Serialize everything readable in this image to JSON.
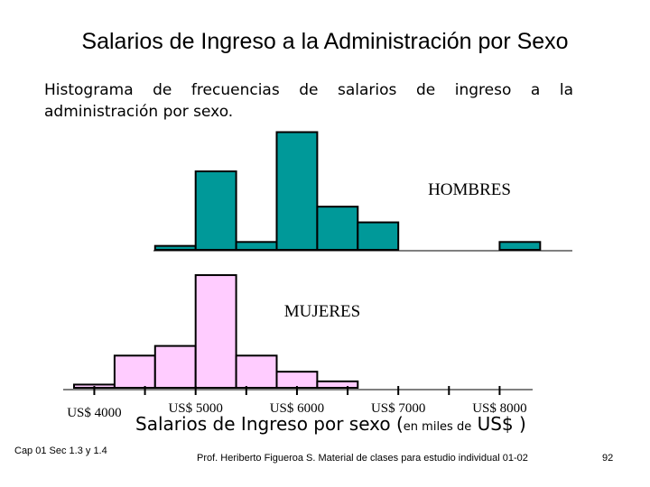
{
  "slide": {
    "title": "Salarios de Ingreso a la Administración por Sexo",
    "intro": "Histograma de frecuencias de salarios de ingreso a la administración por sexo.",
    "xlabel_main": "Salarios de Ingreso por sexo (",
    "xlabel_small": "en miles de",
    "xlabel_unit": " US$ )",
    "footer_left": "Cap 01 Sec 1.3 y 1.4",
    "footer_center": "Prof. Heriberto Figueroa S. Material de clases para estudio individual 01-02",
    "page_number": "92"
  },
  "chart_data": {
    "type": "bar",
    "xlabel": "Salarios de Ingreso por sexo (en miles de US$ )",
    "xlim": [
      3800,
      8700
    ],
    "tick_values": [
      4000,
      5000,
      6000,
      7000,
      8000
    ],
    "tick_labels": [
      "US$ 4000",
      "US$ 5000",
      "US$ 6000",
      "US$ 7000",
      "US$ 8000"
    ],
    "series": [
      {
        "name": "HOMBRES",
        "color": "#009999",
        "bins": [
          {
            "x0": 4600,
            "x1": 5000,
            "value": 1
          },
          {
            "x0": 5000,
            "x1": 5400,
            "value": 20
          },
          {
            "x0": 5400,
            "x1": 5800,
            "value": 2
          },
          {
            "x0": 5800,
            "x1": 6200,
            "value": 30
          },
          {
            "x0": 6200,
            "x1": 6600,
            "value": 11
          },
          {
            "x0": 6600,
            "x1": 7000,
            "value": 7
          },
          {
            "x0": 8000,
            "x1": 8400,
            "value": 2
          }
        ]
      },
      {
        "name": "MUJERES",
        "color": "#ffccff",
        "bins": [
          {
            "x0": 3800,
            "x1": 4200,
            "value": 1
          },
          {
            "x0": 4200,
            "x1": 4600,
            "value": 10
          },
          {
            "x0": 4600,
            "x1": 5000,
            "value": 13
          },
          {
            "x0": 5000,
            "x1": 5400,
            "value": 35
          },
          {
            "x0": 5400,
            "x1": 5800,
            "value": 10
          },
          {
            "x0": 5800,
            "x1": 6200,
            "value": 5
          },
          {
            "x0": 6200,
            "x1": 6600,
            "value": 2
          }
        ]
      }
    ]
  }
}
